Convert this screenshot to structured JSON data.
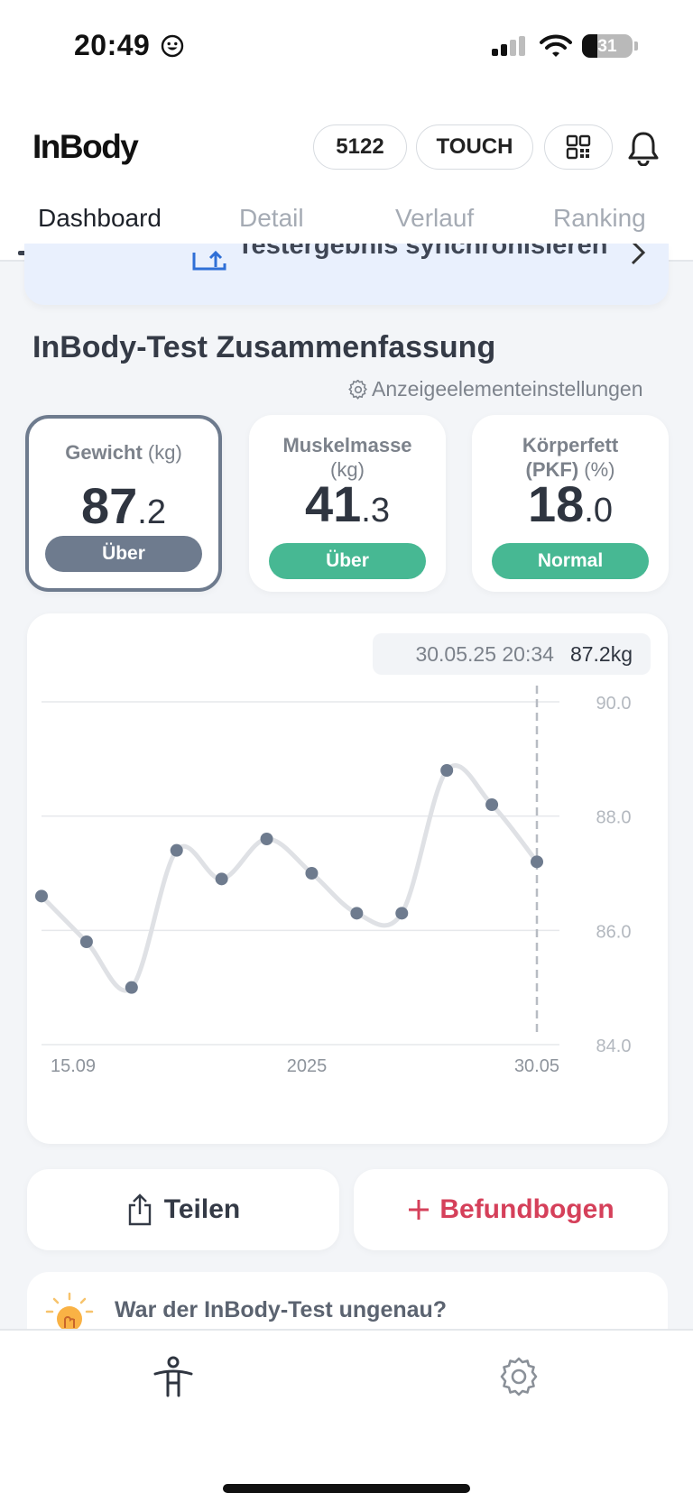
{
  "status_bar": {
    "time": "20:49",
    "battery": "31"
  },
  "header": {
    "logo": "InBody",
    "id_badge": "5122",
    "touch_badge": "TOUCH",
    "tabs": [
      {
        "label": "Dashboard",
        "active": true
      },
      {
        "label": "Detail",
        "active": false
      },
      {
        "label": "Verlauf",
        "active": false
      },
      {
        "label": "Ranking",
        "active": false
      }
    ]
  },
  "sync_banner": {
    "text": "Testergebnis synchronisieren"
  },
  "summary": {
    "title": "InBody-Test Zusammenfassung",
    "settings_label": "Anzeigeelementeinstellungen",
    "cards": [
      {
        "label": "Gewicht",
        "unit": "(kg)",
        "value_int": "87",
        "value_dec": ".2",
        "status": "Über",
        "status_color": "#6e7b8e",
        "selected": true
      },
      {
        "label": "Muskelmasse",
        "unit": "(kg)",
        "value_int": "41",
        "value_dec": ".3",
        "status": "Über",
        "status_color": "#47b893",
        "selected": false
      },
      {
        "label": "Körperfett",
        "label2": "(PKF)",
        "unit": "(%)",
        "value_int": "18",
        "value_dec": ".0",
        "status": "Normal",
        "status_color": "#47b893",
        "selected": false
      }
    ]
  },
  "tooltip": {
    "date": "30.05.25 20:34",
    "value": "87.2kg"
  },
  "chart_data": {
    "type": "line",
    "title": "",
    "xlabel": "",
    "ylabel": "",
    "x_tick_labels": [
      "15.09",
      "2025",
      "30.05"
    ],
    "y_ticks": [
      "90.0",
      "88.0",
      "86.0",
      "84.0"
    ],
    "ylim": [
      84,
      90
    ],
    "grid": true,
    "series": [
      {
        "values": [
          86.6,
          85.8,
          85.0,
          87.4,
          86.9,
          87.6,
          87.0,
          86.3,
          86.3,
          88.8,
          88.2,
          87.2
        ]
      }
    ],
    "colors": {
      "line": "#dfe1e5",
      "point": "#6e7b8e",
      "grid": "#e6e8eb"
    }
  },
  "actions": {
    "share": "Teilen",
    "report": "Befundbogen"
  },
  "tip": {
    "text": "War der InBody-Test ungenau?"
  }
}
